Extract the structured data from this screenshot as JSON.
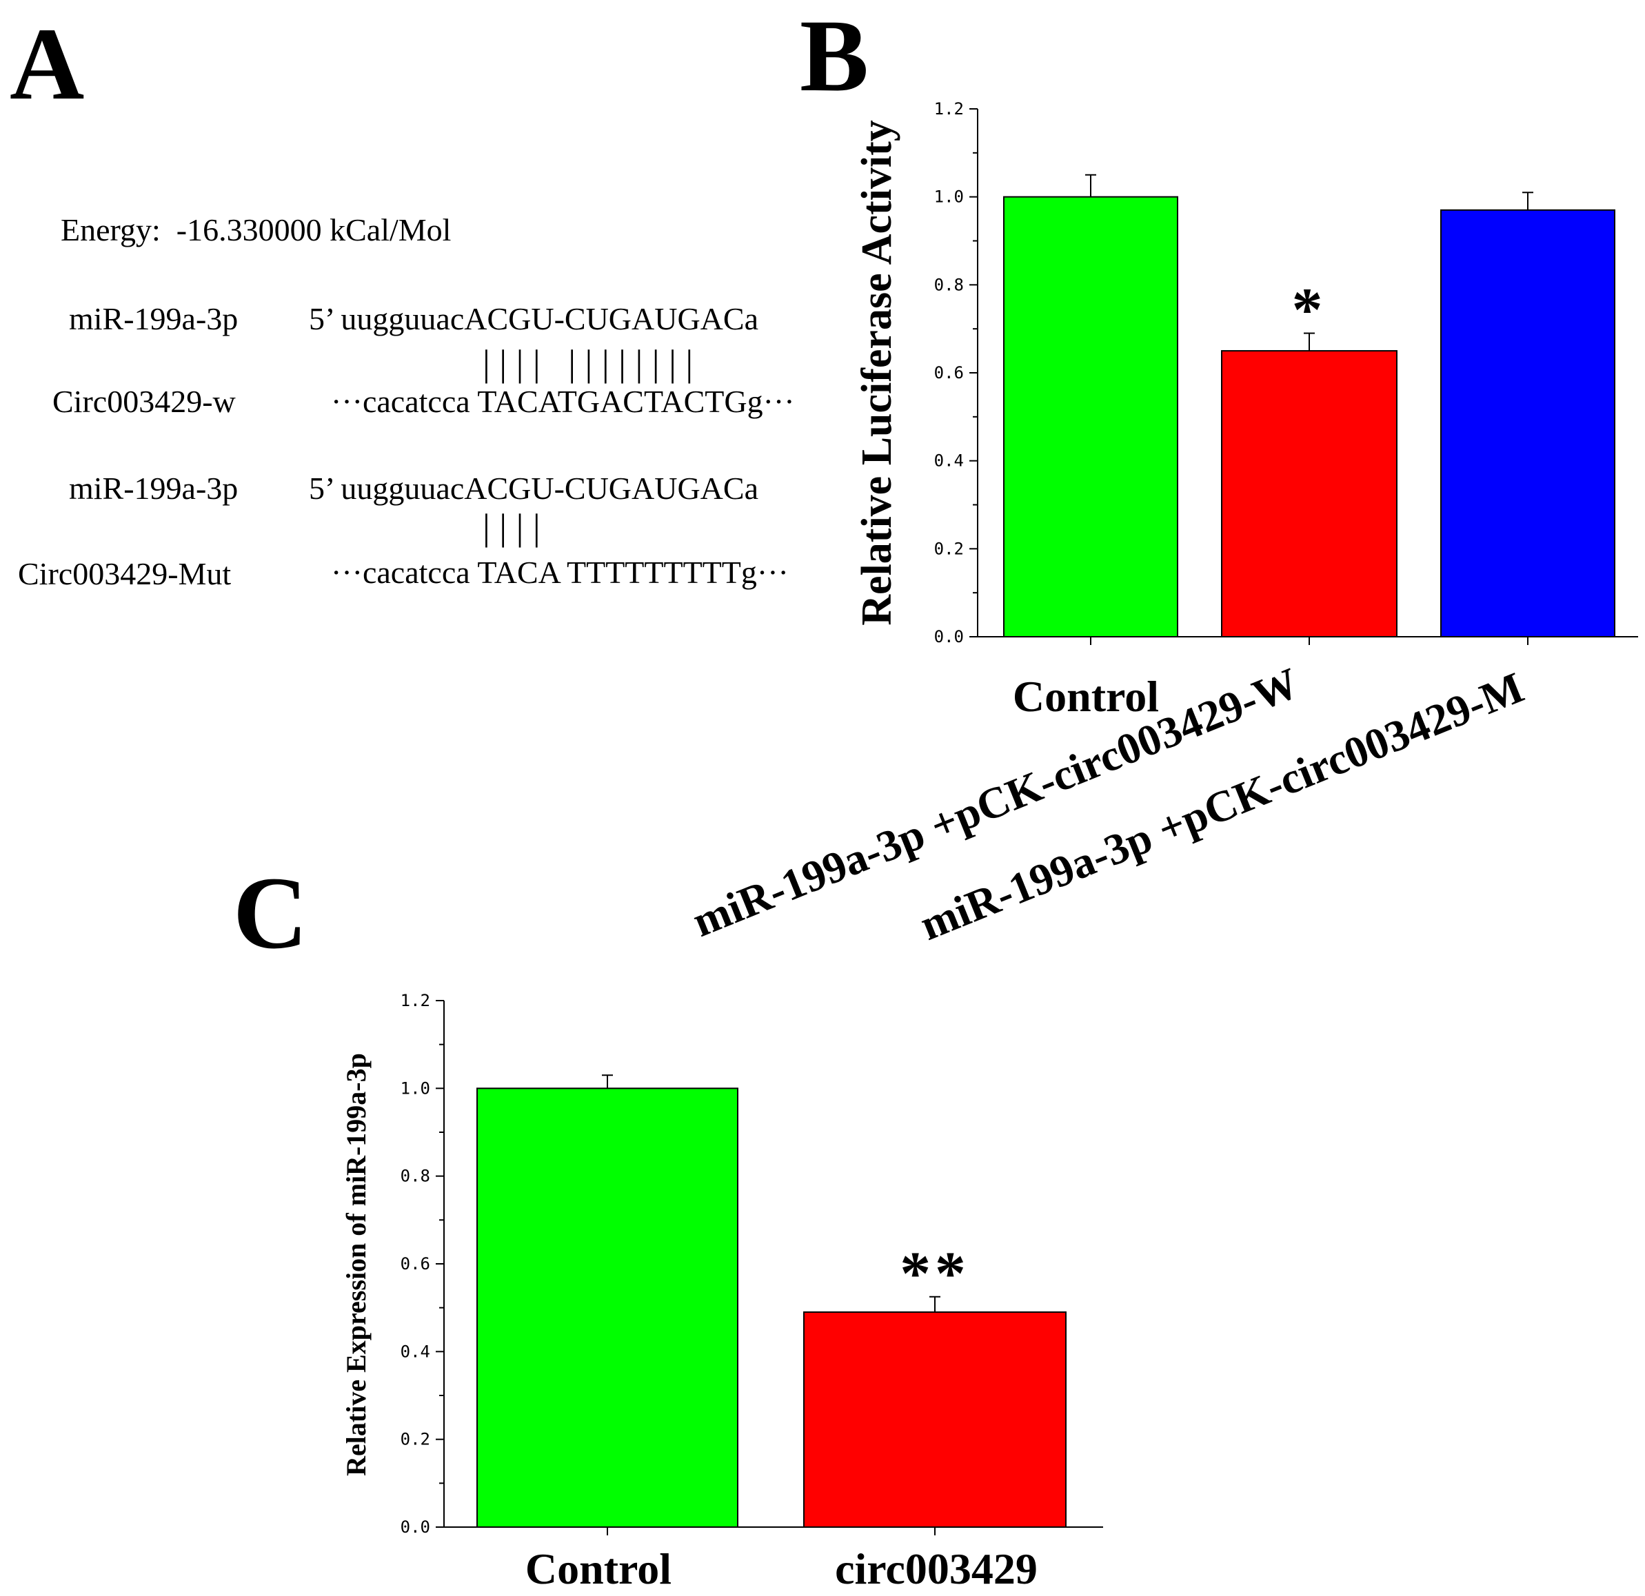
{
  "panels": {
    "a": "A",
    "b": "B",
    "c": "C"
  },
  "sequence_panel": {
    "energy": "Energy:  -16.330000 kCal/Mol",
    "rows": [
      {
        "label": "miR-199a-3p",
        "seq": "5’ uugguuacACGU-CUGAUGACa"
      },
      {
        "bars": "| | | |   | | | | | | | |"
      },
      {
        "label": "Circ003429-w",
        "seq": "···cacatcca TACATGACTACTGg···"
      },
      {
        "label": "miR-199a-3p",
        "seq": "5’ uugguuacACGU-CUGAUGACa"
      },
      {
        "bars": "| | | |"
      },
      {
        "label": "Circ003429-Mut",
        "seq": "···cacatcca TACA TTTTTTTTTg···"
      }
    ]
  },
  "chart_data": [
    {
      "id": "B",
      "type": "bar",
      "title": "",
      "ylabel": "Relative Luciferase Activity",
      "xlabel": "",
      "ylim": [
        0,
        1.2
      ],
      "yticks": [
        "0.0",
        "0.2",
        "0.4",
        "0.6",
        "0.8",
        "1.0",
        "1.2"
      ],
      "categories": [
        "Control",
        "miR-199a-3p +pCK-circ003429-W",
        "miR-199a-3p +pCK-circ003429-M"
      ],
      "values": [
        1.0,
        0.65,
        0.97
      ],
      "errors": [
        0.05,
        0.04,
        0.04
      ],
      "colors": [
        "#00ff00",
        "#ff0000",
        "#0000ff"
      ],
      "annotations": [
        "",
        "*",
        ""
      ]
    },
    {
      "id": "C",
      "type": "bar",
      "title": "",
      "ylabel": "Relative Expression of  miR-199a-3p",
      "xlabel": "",
      "ylim": [
        0,
        1.2
      ],
      "yticks": [
        "0.0",
        "0.2",
        "0.4",
        "0.6",
        "0.8",
        "1.0",
        "1.2"
      ],
      "categories": [
        "Control",
        "circ003429"
      ],
      "values": [
        1.0,
        0.49
      ],
      "errors": [
        0.03,
        0.035
      ],
      "colors": [
        "#00ff00",
        "#ff0000"
      ],
      "annotations": [
        "",
        "**"
      ]
    }
  ]
}
